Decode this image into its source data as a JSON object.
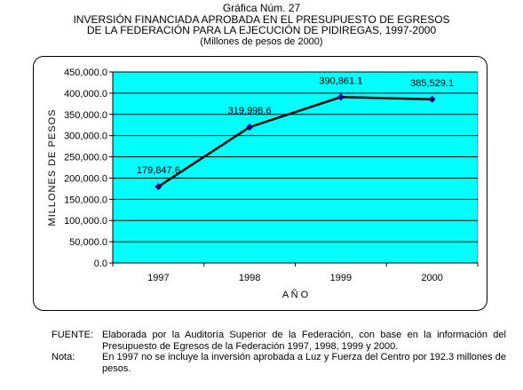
{
  "header": {
    "label": "Gráfica Núm. 27",
    "title_line1": "INVERSIÓN FINANCIADA APROBADA EN EL PRESUPUESTO DE EGRESOS",
    "title_line2": "DE LA FEDERACIÓN PARA LA EJECUCIÓN DE PIDIREGAS, 1997-2000",
    "subtitle": "(Millones de pesos de 2000)"
  },
  "chart_data": {
    "type": "line",
    "categories": [
      "1997",
      "1998",
      "1999",
      "2000"
    ],
    "series": [
      {
        "values": [
          179847.6,
          319998.6,
          390861.1,
          385529.1
        ],
        "labels": [
          "179,847.6",
          "319,998.6",
          "390,861.1",
          "385,529.1"
        ]
      }
    ],
    "xlabel": "A Ñ O",
    "ylabel": "MILLONES DE PESOS",
    "ylim": [
      0,
      450000
    ],
    "yticks": [
      0,
      50000,
      100000,
      150000,
      200000,
      250000,
      300000,
      350000,
      400000,
      450000
    ],
    "ytick_labels": [
      "0.0",
      "50,000.0",
      "100,000.0",
      "150,000.0",
      "200,000.0",
      "250,000.0",
      "300,000.0",
      "350,000.0",
      "400,000.0",
      "450,000.0"
    ],
    "grid": true,
    "legend": "none",
    "colors": {
      "plot_bg": "#00FFFF",
      "line": "#000000",
      "marker": "#000080",
      "grid": "#000000"
    }
  },
  "notes": {
    "source_key": "FUENTE:",
    "source_text": "Elaborada por la Auditoría Superior de la Federación, con base en la información del Presupuesto de Egresos de la Federación 1997, 1998, 1999 y 2000.",
    "note_key": "Nota:",
    "note_text": "En 1997 no se incluye la inversión aprobada a Luz y Fuerza del Centro por 192.3 millones de pesos."
  }
}
